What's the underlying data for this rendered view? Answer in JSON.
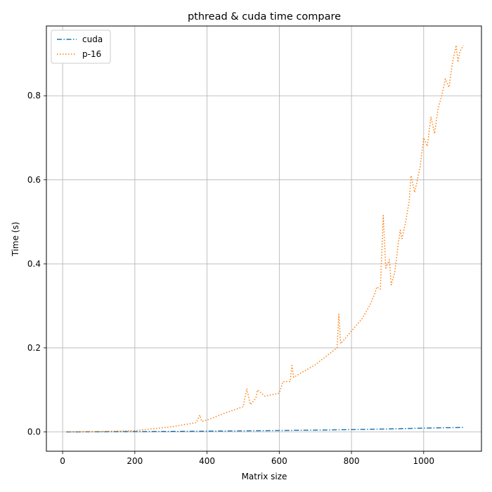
{
  "chart_data": {
    "type": "line",
    "title": "pthread & cuda time compare",
    "xlabel": "Matrix size",
    "ylabel": "Time (s)",
    "xlim": [
      -45,
      1160
    ],
    "ylim": [
      -0.046,
      0.966
    ],
    "xticks": [
      0,
      200,
      400,
      600,
      800,
      1000
    ],
    "xtick_labels": [
      "0",
      "200",
      "400",
      "600",
      "800",
      "1000"
    ],
    "yticks": [
      0.0,
      0.2,
      0.4,
      0.6,
      0.8
    ],
    "ytick_labels": [
      "0.0",
      "0.2",
      "0.4",
      "0.6",
      "0.8"
    ],
    "grid": true,
    "legend_position": "top-left",
    "series": [
      {
        "name": "cuda",
        "color": "#1f77b4",
        "line_style": "dashdot",
        "x": [
          10,
          100,
          200,
          300,
          400,
          500,
          600,
          700,
          800,
          900,
          1000,
          1050,
          1110
        ],
        "y": [
          0.0,
          0.0002,
          0.0006,
          0.0012,
          0.0018,
          0.0025,
          0.0033,
          0.0042,
          0.0055,
          0.007,
          0.009,
          0.0098,
          0.0105
        ]
      },
      {
        "name": "p-16",
        "color": "#ff7f0e",
        "line_style": "dotted",
        "x": [
          10,
          100,
          200,
          280,
          300,
          370,
          380,
          385,
          400,
          450,
          500,
          510,
          520,
          535,
          540,
          560,
          600,
          610,
          630,
          635,
          640,
          700,
          760,
          765,
          770,
          800,
          830,
          850,
          865,
          870,
          880,
          888,
          890,
          895,
          905,
          910,
          920,
          930,
          935,
          940,
          950,
          960,
          965,
          975,
          980,
          990,
          1000,
          1010,
          1020,
          1030,
          1040,
          1050,
          1060,
          1070,
          1080,
          1090,
          1095,
          1100,
          1110
        ],
        "y": [
          0.0,
          0.001,
          0.003,
          0.01,
          0.012,
          0.022,
          0.04,
          0.025,
          0.028,
          0.045,
          0.06,
          0.103,
          0.065,
          0.08,
          0.1,
          0.085,
          0.092,
          0.12,
          0.12,
          0.158,
          0.13,
          0.16,
          0.2,
          0.28,
          0.21,
          0.24,
          0.27,
          0.3,
          0.33,
          0.345,
          0.34,
          0.515,
          0.48,
          0.39,
          0.41,
          0.35,
          0.38,
          0.45,
          0.48,
          0.46,
          0.5,
          0.55,
          0.61,
          0.57,
          0.59,
          0.63,
          0.7,
          0.68,
          0.75,
          0.71,
          0.77,
          0.8,
          0.84,
          0.82,
          0.88,
          0.92,
          0.88,
          0.905,
          0.92
        ]
      }
    ]
  }
}
